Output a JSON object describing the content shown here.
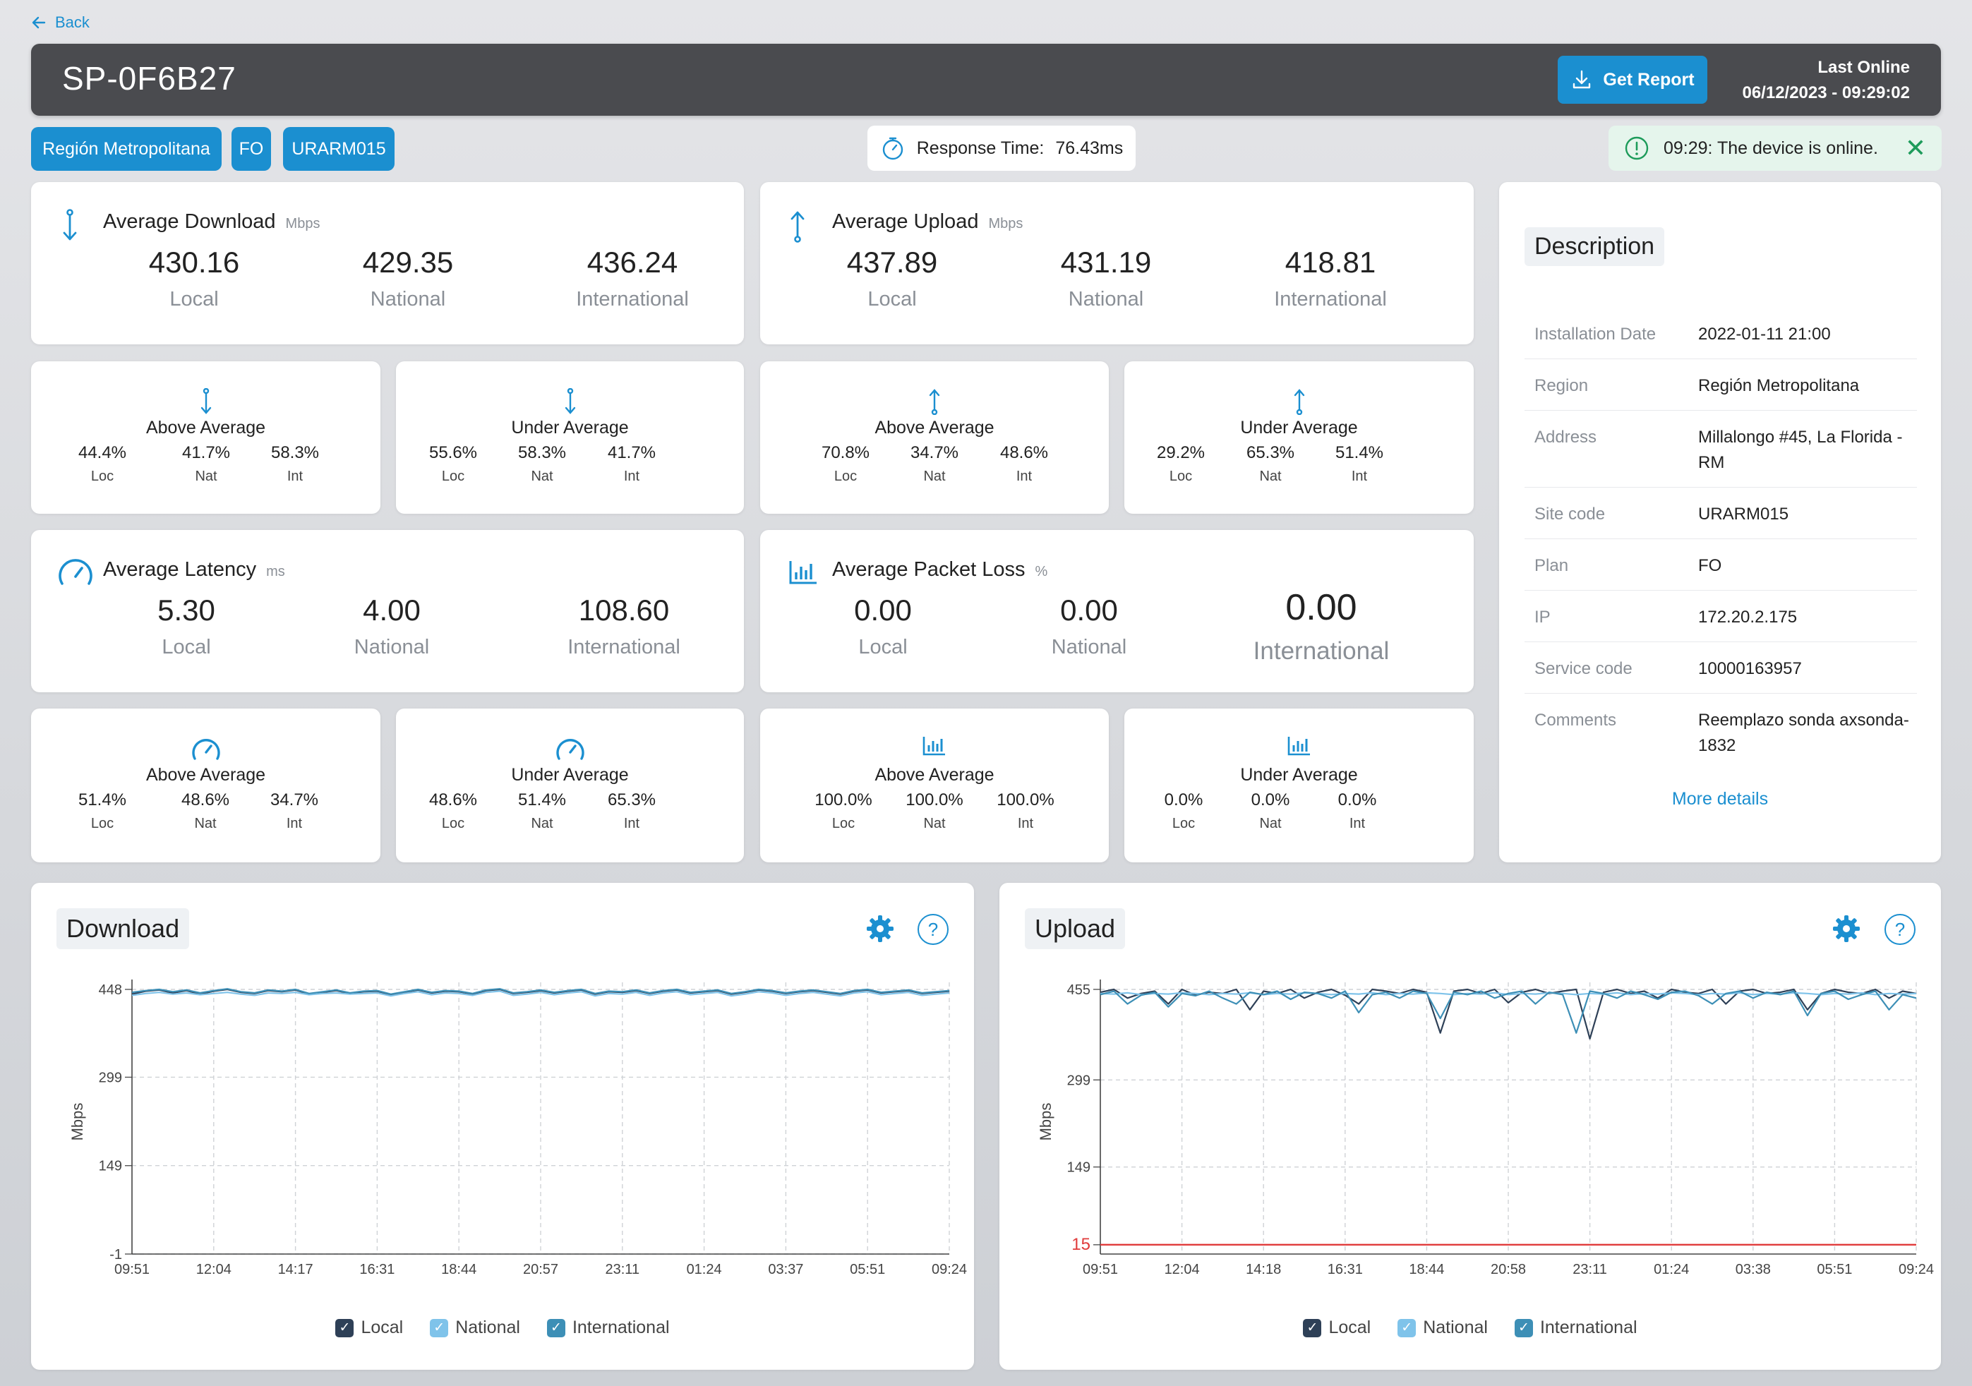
{
  "back_label": "Back",
  "header": {
    "device_id": "SP-0F6B27",
    "report_label": "Get Report",
    "last_online_label": "Last Online",
    "last_online_value": "06/12/2023 - 09:29:02"
  },
  "chips": [
    "Región Metropolitana",
    "FO",
    "URARM015"
  ],
  "response_time": {
    "label": "Response Time:",
    "value": "76.43ms"
  },
  "alert": {
    "text": "09:29: The device is online."
  },
  "colors": {
    "accent": "#1b8fd0",
    "local": "#2e4057",
    "national": "#7fc3ea",
    "international": "#3d8fb6",
    "threshold": "#e03b3b"
  },
  "metrics": {
    "download": {
      "title": "Average Download",
      "unit": "Mbps",
      "icon": "download-arrow-icon",
      "values": [
        {
          "v": "430.16",
          "l": "Local"
        },
        {
          "v": "429.35",
          "l": "National"
        },
        {
          "v": "436.24",
          "l": "International"
        }
      ]
    },
    "upload": {
      "title": "Average Upload",
      "unit": "Mbps",
      "icon": "upload-arrow-icon",
      "values": [
        {
          "v": "437.89",
          "l": "Local"
        },
        {
          "v": "431.19",
          "l": "National"
        },
        {
          "v": "418.81",
          "l": "International"
        }
      ]
    },
    "latency": {
      "title": "Average Latency",
      "unit": "ms",
      "icon": "speedometer-icon",
      "values": [
        {
          "v": "5.30",
          "l": "Local"
        },
        {
          "v": "4.00",
          "l": "National"
        },
        {
          "v": "108.60",
          "l": "International"
        }
      ]
    },
    "packet_loss": {
      "title": "Average Packet Loss",
      "unit": "%",
      "icon": "bar-chart-icon",
      "values": [
        {
          "v": "0.00",
          "l": "Local"
        },
        {
          "v": "0.00",
          "l": "National"
        },
        {
          "v": "0.00",
          "l": "International"
        }
      ]
    }
  },
  "subs": {
    "dl_above": {
      "title": "Above Average",
      "vals": [
        "44.4%",
        "41.7%",
        "58.3%"
      ]
    },
    "dl_under": {
      "title": "Under Average",
      "vals": [
        "55.6%",
        "58.3%",
        "41.7%"
      ]
    },
    "ul_above": {
      "title": "Above Average",
      "vals": [
        "70.8%",
        "34.7%",
        "48.6%"
      ]
    },
    "ul_under": {
      "title": "Under Average",
      "vals": [
        "29.2%",
        "65.3%",
        "51.4%"
      ]
    },
    "lat_above": {
      "title": "Above Average",
      "vals": [
        "51.4%",
        "48.6%",
        "34.7%"
      ]
    },
    "lat_under": {
      "title": "Under Average",
      "vals": [
        "48.6%",
        "51.4%",
        "65.3%"
      ]
    },
    "pl_above": {
      "title": "Above Average",
      "vals": [
        "100.0%",
        "100.0%",
        "100.0%"
      ]
    },
    "pl_under": {
      "title": "Under Average",
      "vals": [
        "0.0%",
        "0.0%",
        "0.0%"
      ]
    },
    "labels": [
      "Loc",
      "Nat",
      "Int"
    ]
  },
  "description": {
    "title": "Description",
    "rows": [
      {
        "k": "Installation Date",
        "v": "2022-01-11 21:00"
      },
      {
        "k": "Region",
        "v": "Región Metropolitana"
      },
      {
        "k": "Address",
        "v": "Millalongo #45, La Florida - RM"
      },
      {
        "k": "Site code",
        "v": "URARM015"
      },
      {
        "k": "Plan",
        "v": "FO"
      },
      {
        "k": "IP",
        "v": "172.20.2.175"
      },
      {
        "k": "Service code",
        "v": "10000163957"
      },
      {
        "k": "Comments",
        "v": "Reemplazo sonda axsonda-1832"
      }
    ],
    "more_details": "More details"
  },
  "chart_data": [
    {
      "type": "line",
      "title": "Download",
      "ylabel": "Mbps",
      "yticks": [
        448,
        299,
        149,
        -1
      ],
      "ylim": [
        -1,
        448
      ],
      "xticks": [
        "09:51",
        "12:04",
        "14:17",
        "16:31",
        "18:44",
        "20:57",
        "23:11",
        "01:24",
        "03:37",
        "05:51",
        "09:24"
      ],
      "series": [
        {
          "name": "Local",
          "values": [
            440,
            445,
            447,
            442,
            446,
            440,
            445,
            448,
            443,
            441,
            446,
            444,
            447,
            440,
            443,
            446,
            441,
            444,
            445,
            439,
            443,
            447,
            442,
            445,
            444,
            440,
            446,
            448,
            441,
            443,
            446,
            442,
            445,
            447,
            440,
            444,
            443,
            446,
            441,
            445,
            447,
            442,
            444,
            446,
            440,
            443,
            447,
            445,
            441,
            444,
            446,
            443,
            440,
            445,
            447,
            442,
            444,
            446,
            441,
            443,
            445
          ]
        },
        {
          "name": "National",
          "values": [
            438,
            441,
            443,
            440,
            442,
            439,
            441,
            443,
            440,
            438,
            442,
            441,
            443,
            439,
            441,
            442,
            440,
            441,
            442,
            437,
            441,
            444,
            439,
            442,
            441,
            438,
            443,
            445,
            438,
            440,
            443,
            439,
            442,
            444,
            437,
            441,
            440,
            443,
            438,
            442,
            444,
            439,
            441,
            443,
            437,
            440,
            444,
            442,
            438,
            441,
            443,
            440,
            437,
            442,
            444,
            439,
            441,
            443,
            438,
            440,
            442
          ]
        },
        {
          "name": "International",
          "values": [
            443,
            446,
            448,
            444,
            447,
            442,
            446,
            449,
            444,
            442,
            447,
            445,
            448,
            441,
            444,
            447,
            442,
            445,
            446,
            440,
            444,
            448,
            443,
            446,
            445,
            441,
            447,
            449,
            442,
            444,
            447,
            443,
            446,
            448,
            441,
            445,
            444,
            447,
            442,
            446,
            448,
            443,
            445,
            447,
            441,
            444,
            448,
            446,
            442,
            445,
            447,
            444,
            441,
            446,
            448,
            443,
            445,
            447,
            442,
            444,
            446
          ]
        }
      ],
      "legend": [
        "Local",
        "National",
        "International"
      ]
    },
    {
      "type": "line",
      "title": "Upload",
      "ylabel": "Mbps",
      "yticks": [
        455,
        299,
        149,
        15
      ],
      "ylim": [
        -1,
        455
      ],
      "threshold": 15,
      "xticks": [
        "09:51",
        "12:04",
        "14:18",
        "16:31",
        "18:44",
        "20:58",
        "23:11",
        "01:24",
        "03:38",
        "05:51",
        "09:24"
      ],
      "series": [
        {
          "name": "Local",
          "values": [
            450,
            455,
            440,
            448,
            452,
            430,
            455,
            445,
            450,
            448,
            455,
            420,
            452,
            448,
            455,
            440,
            450,
            455,
            445,
            430,
            455,
            452,
            448,
            455,
            450,
            380,
            452,
            455,
            448,
            455,
            432,
            450,
            455,
            448,
            452,
            455,
            370,
            450,
            455,
            448,
            452,
            440,
            455,
            450,
            448,
            455,
            430,
            452,
            455,
            448,
            450,
            455,
            420,
            448,
            455,
            450,
            448,
            455,
            440,
            452,
            448
          ]
        },
        {
          "name": "National",
          "values": [
            448,
            447,
            449,
            446,
            448,
            447,
            449,
            448,
            446,
            448,
            447,
            449,
            446,
            448,
            447,
            449,
            448,
            446,
            448,
            447,
            449,
            446,
            448,
            447,
            449,
            448,
            446,
            448,
            447,
            449,
            446,
            448,
            447,
            449,
            448,
            446,
            448,
            447,
            449,
            446,
            448,
            447,
            449,
            448,
            446,
            448,
            447,
            449,
            446,
            448,
            447,
            449,
            448,
            446,
            448,
            447,
            449,
            446,
            448,
            447,
            448
          ]
        },
        {
          "name": "International",
          "values": [
            446,
            452,
            430,
            445,
            450,
            425,
            448,
            444,
            452,
            440,
            430,
            450,
            446,
            452,
            438,
            450,
            448,
            440,
            452,
            415,
            446,
            450,
            440,
            452,
            448,
            405,
            450,
            446,
            452,
            440,
            448,
            452,
            430,
            450,
            446,
            380,
            452,
            448,
            440,
            452,
            446,
            438,
            450,
            452,
            444,
            430,
            448,
            452,
            440,
            450,
            446,
            452,
            410,
            448,
            452,
            438,
            446,
            452,
            420,
            446,
            440
          ]
        }
      ],
      "legend": [
        "Local",
        "National",
        "International"
      ]
    }
  ]
}
